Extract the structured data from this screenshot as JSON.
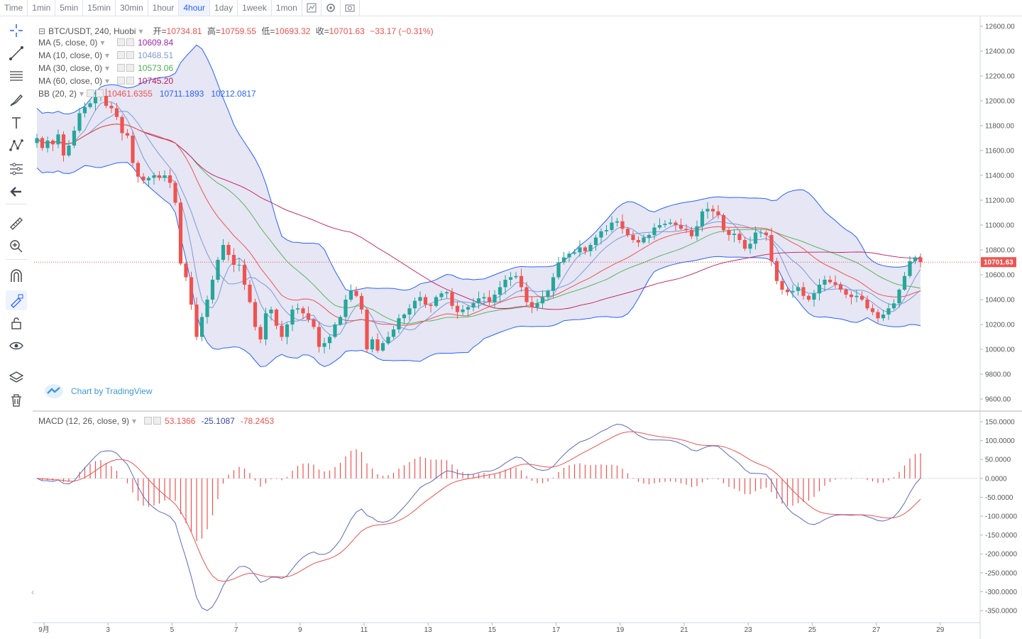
{
  "toolbar": {
    "intervals": [
      "Time",
      "1min",
      "5min",
      "15min",
      "30min",
      "1hour",
      "4hour",
      "1day",
      "1week",
      "1mon"
    ],
    "active_interval": "4hour",
    "icons": [
      "indicator-icon",
      "settings-icon",
      "screenshot-icon"
    ]
  },
  "sidebar": {
    "tools": [
      "crosshair-icon",
      "trend-line-icon",
      "horizontal-lines-icon",
      "brush-icon",
      "text-icon",
      "pattern-icon",
      "measure-lines-icon",
      "back-arrow-icon",
      "ruler-icon",
      "zoom-in-icon",
      "magnet-icon",
      "lock-drawing-icon",
      "unlock-icon",
      "eye-icon",
      "layers-icon",
      "trash-icon"
    ]
  },
  "legend": {
    "symbol": "BTC/USDT, 240, Huobi",
    "open_label": "开=",
    "open": "10734.81",
    "high_label": "高=",
    "high": "10759.55",
    "low_label": "低=",
    "low": "10693.32",
    "close_label": "收=",
    "close": "10701.63",
    "change": "−33.17 (−0.31%)",
    "ma5_label": "MA (5, close, 0)",
    "ma5": "10609.84",
    "ma10_label": "MA (10, close, 0)",
    "ma10": "10468.51",
    "ma30_label": "MA (30, close, 0)",
    "ma30": "10573.06",
    "ma60_label": "MA (60, close, 0)",
    "ma60": "10745.20",
    "bb_label": "BB (20, 2)",
    "bb_mid": "10461.6355",
    "bb_up": "10711.1893",
    "bb_low": "10212.0817",
    "macd_label": "MACD (12, 26, close, 9)",
    "macd_hist": "53.1366",
    "macd": "-25.1087",
    "macd_signal": "-78.2453",
    "watermark": "Chart by TradingView"
  },
  "colors": {
    "up": "#26a69a",
    "down": "#ef5350",
    "ma5": "#9c27b0",
    "ma10": "#7e9ad6",
    "ma30": "#4caf50",
    "ma60": "#c2185b",
    "bb": "#2962ff",
    "bb_fill": "#dcdcf0",
    "macd": "#5c6bc0",
    "signal": "#ef5350",
    "price_tag": "#ef5350"
  },
  "chart_data": [
    {
      "type": "candlestick",
      "title": "BTC/USDT, 240, Huobi",
      "x_ticks": [
        "9月",
        "3",
        "5",
        "7",
        "9",
        "11",
        "13",
        "15",
        "17",
        "19",
        "21",
        "23",
        "25",
        "27",
        "29"
      ],
      "y_ticks": [
        "12600.00",
        "12400.00",
        "12200.00",
        "12000.00",
        "11800.00",
        "11600.00",
        "11400.00",
        "11200.00",
        "11000.00",
        "10800.00",
        "10600.00",
        "10400.00",
        "10200.00",
        "10000.00",
        "9800.00",
        "9600.00"
      ],
      "ylim": [
        9550,
        12650
      ],
      "last_price": "10701.63",
      "closes": [
        11700,
        11620,
        11680,
        11650,
        11730,
        11560,
        11640,
        11760,
        11900,
        11950,
        11980,
        12030,
        12040,
        11960,
        11940,
        11870,
        11740,
        11720,
        11500,
        11390,
        11360,
        11380,
        11400,
        11380,
        11400,
        11340,
        11180,
        10690,
        10580,
        10360,
        10100,
        10260,
        10400,
        10560,
        10720,
        10840,
        10760,
        10680,
        10680,
        10520,
        10380,
        10180,
        10080,
        10290,
        10320,
        10190,
        10100,
        10200,
        10320,
        10330,
        10290,
        10240,
        10180,
        10020,
        10050,
        10100,
        10200,
        10260,
        10400,
        10470,
        10430,
        10320,
        10000,
        10080,
        9990,
        10050,
        10100,
        10160,
        10250,
        10280,
        10330,
        10390,
        10420,
        10360,
        10350,
        10420,
        10450,
        10460,
        10350,
        10300,
        10320,
        10340,
        10370,
        10410,
        10420,
        10380,
        10440,
        10500,
        10560,
        10580,
        10590,
        10500,
        10380,
        10340,
        10370,
        10420,
        10470,
        10580,
        10700,
        10740,
        10770,
        10780,
        10820,
        10790,
        10840,
        10900,
        10950,
        10960,
        11020,
        11030,
        10970,
        10920,
        10880,
        10860,
        10900,
        10920,
        10980,
        11000,
        11010,
        11020,
        11000,
        10970,
        10960,
        10910,
        10990,
        11110,
        11130,
        11110,
        11080,
        10960,
        10920,
        10930,
        10880,
        10810,
        10850,
        10940,
        10940,
        10920,
        10710,
        10550,
        10480,
        10460,
        10470,
        10500,
        10430,
        10400,
        10450,
        10520,
        10560,
        10540,
        10520,
        10480,
        10440,
        10420,
        10430,
        10400,
        10330,
        10300,
        10250,
        10280,
        10330,
        10370,
        10480,
        10590,
        10710,
        10740,
        10701.63
      ]
    },
    {
      "type": "macd",
      "title": "MACD (12, 26, close, 9)",
      "y_ticks": [
        "150.0000",
        "100.0000",
        "50.0000",
        "0.0000",
        "-50.0000",
        "-100.0000",
        "-150.0000",
        "-200.0000",
        "-250.0000",
        "-300.0000",
        "-350.0000"
      ],
      "ylim": [
        -370,
        160
      ],
      "last_values": {
        "histogram": 53.1366,
        "macd": -25.1087,
        "signal": -78.2453
      }
    }
  ]
}
